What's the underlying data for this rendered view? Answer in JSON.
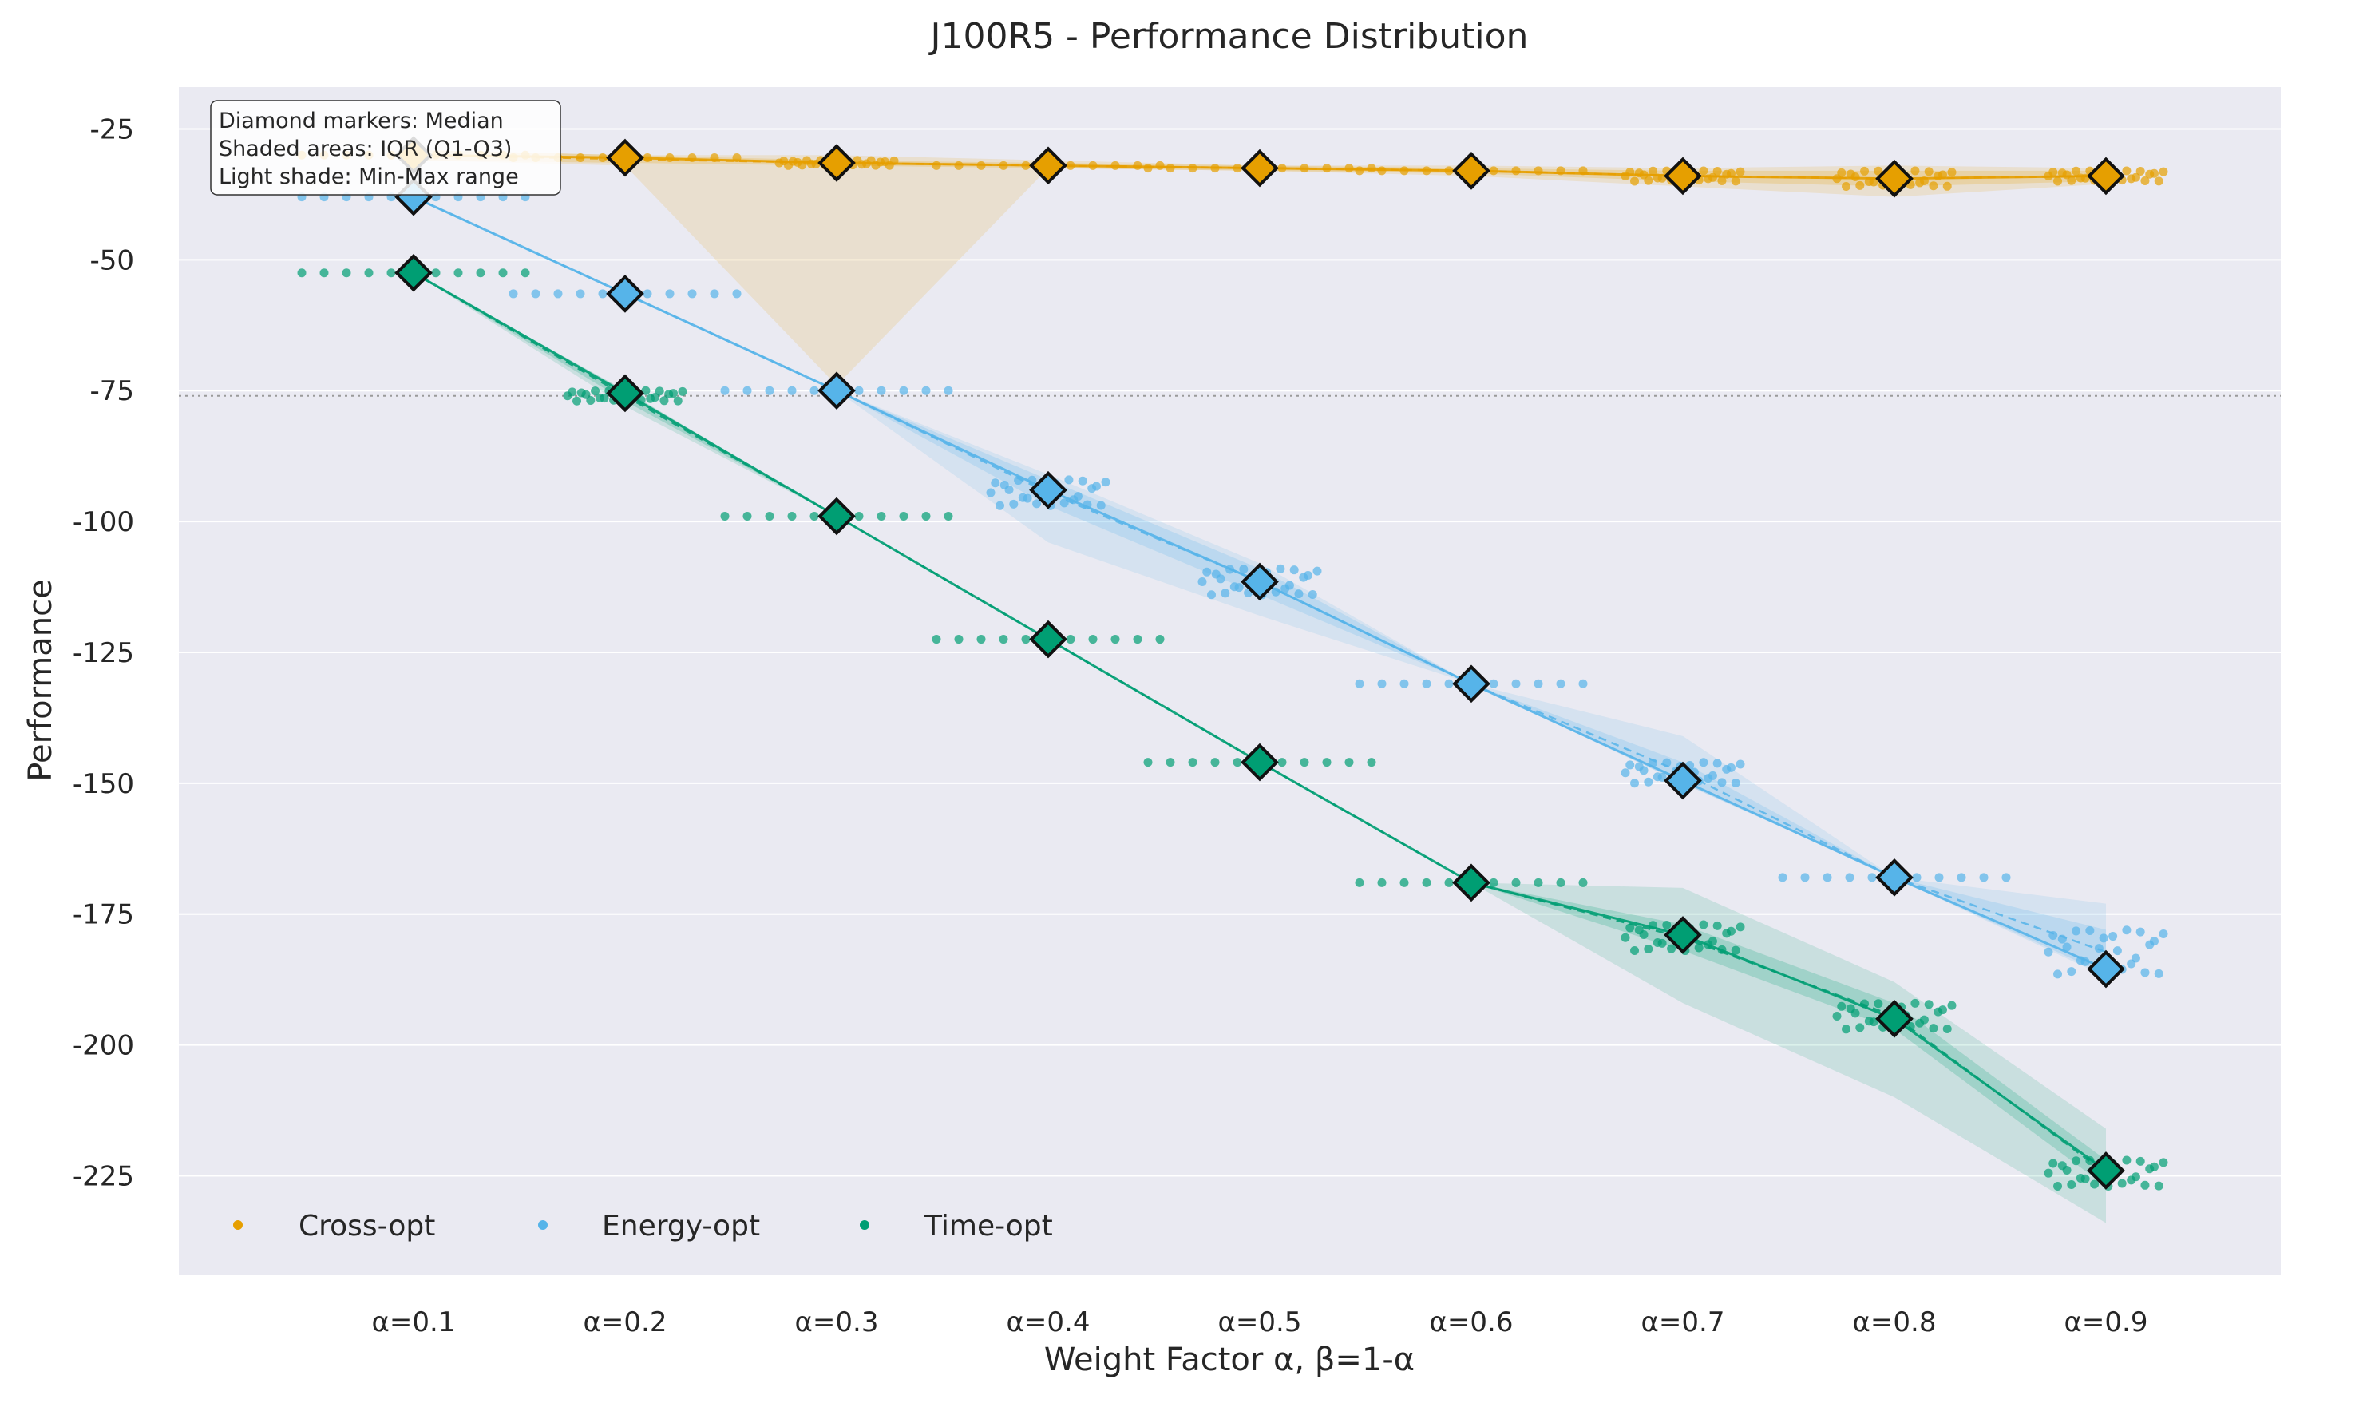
{
  "chart_data": {
    "type": "scatter",
    "title": "J100R5 - Performance Distribution",
    "xlabel": "Weight Factor α, β=1-α",
    "ylabel": "Performance",
    "categories": [
      "α=0.1",
      "α=0.2",
      "α=0.3",
      "α=0.4",
      "α=0.5",
      "α=0.6",
      "α=0.7",
      "α=0.8",
      "α=0.9"
    ],
    "x": [
      0.1,
      0.2,
      0.3,
      0.4,
      0.5,
      0.6,
      0.7,
      0.8,
      0.9
    ],
    "yticks": [
      -25,
      -50,
      -75,
      -100,
      -125,
      -150,
      -175,
      -200,
      -225
    ],
    "ylim": [
      -244,
      -17
    ],
    "reference_line": -76,
    "grid": true,
    "legend_position": "lower-left",
    "annotation_lines": [
      "Diamond markers: Median",
      "Shaded areas: IQR (Q1-Q3)",
      "Light shade: Min-Max range"
    ],
    "series": [
      {
        "name": "Cross-opt",
        "color": "#E69F00",
        "median": [
          -30,
          -30.5,
          -31.5,
          -32,
          -32.5,
          -33,
          -34,
          -34.5,
          -34
        ],
        "q1": [
          -31,
          -31.5,
          -32,
          -32.5,
          -33,
          -33.5,
          -35,
          -36,
          -35
        ],
        "q3": [
          -29,
          -30,
          -31,
          -31.5,
          -32,
          -32.5,
          -33,
          -33,
          -33
        ],
        "min": [
          -31,
          -32,
          -74,
          -32.5,
          -33,
          -34,
          -36,
          -38,
          -35.5
        ],
        "max": [
          -29,
          -30,
          -30,
          -31,
          -32,
          -32,
          -32.5,
          -32,
          -32.5
        ]
      },
      {
        "name": "Energy-opt",
        "color": "#56B4E9",
        "median": [
          -38,
          -56.5,
          -75,
          -94,
          -111.5,
          -131,
          -149.5,
          -168,
          -185.5
        ],
        "q1": [
          -38,
          -56.5,
          -75,
          -97,
          -114,
          -131,
          -150,
          -168,
          -186.5
        ],
        "q3": [
          -38,
          -56.5,
          -75,
          -92,
          -109,
          -131,
          -146,
          -168,
          -178
        ],
        "min": [
          -38,
          -56.5,
          -75,
          -104,
          -118,
          -131,
          -150,
          -168,
          -187
        ],
        "max": [
          -38,
          -56.5,
          -75,
          -91,
          -108,
          -131,
          -141,
          -168,
          -173
        ]
      },
      {
        "name": "Time-opt",
        "color": "#009E73",
        "median": [
          -52.5,
          -75.5,
          -99,
          -122.5,
          -146,
          -169,
          -179,
          -195,
          -224
        ],
        "q1": [
          -52.5,
          -77,
          -99,
          -122.5,
          -146,
          -169,
          -182,
          -197,
          -227
        ],
        "q3": [
          -52.5,
          -75,
          -99,
          -122.5,
          -146,
          -169,
          -177,
          -192,
          -222
        ],
        "min": [
          -52.5,
          -78,
          -99,
          -122.5,
          -146,
          -169,
          -192,
          -210,
          -234
        ],
        "max": [
          -52.5,
          -75,
          -99,
          -122.5,
          -146,
          -169,
          -170,
          -188,
          -216
        ]
      }
    ]
  }
}
